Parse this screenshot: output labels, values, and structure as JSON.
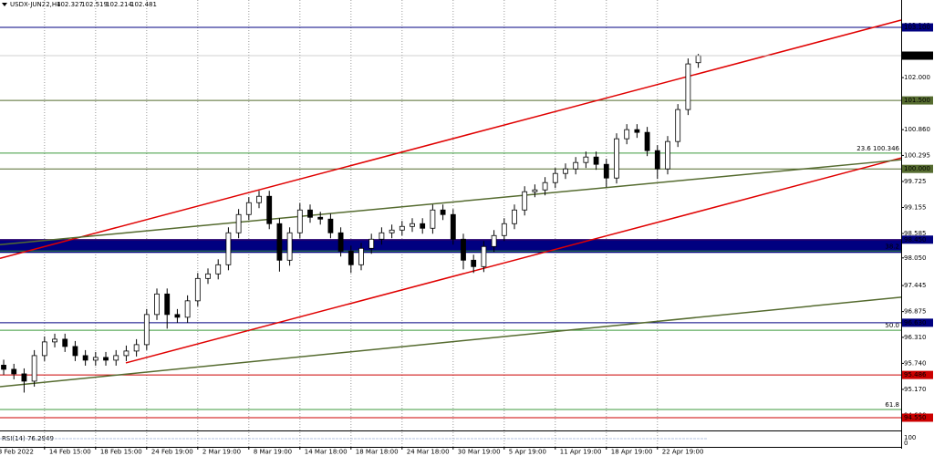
{
  "chart_data": {
    "type": "candlestick",
    "title": "USDX-JUN22,H4",
    "xlim": [
      -0.36,
      87.86
    ],
    "ylim": [
      94.27,
      103.7
    ],
    "xticks": [
      {
        "value": -1,
        "label": "3 Feb 2022"
      },
      {
        "value": 4,
        "label": "14 Feb 15:00"
      },
      {
        "value": 9,
        "label": "18 Feb 15:00"
      },
      {
        "value": 14,
        "label": "24 Feb 19:00"
      },
      {
        "value": 19,
        "label": "2 Mar 19:00"
      },
      {
        "value": 24,
        "label": "8 Mar 19:00"
      },
      {
        "value": 29,
        "label": "14 Mar 18:00"
      },
      {
        "value": 34,
        "label": "18 Mar 18:00"
      },
      {
        "value": 39,
        "label": "24 Mar 18:00"
      },
      {
        "value": 44,
        "label": "30 Mar 19:00"
      },
      {
        "value": 49,
        "label": "5 Apr 19:00"
      },
      {
        "value": 54,
        "label": "11 Apr 19:00"
      },
      {
        "value": 59,
        "label": "18 Apr 19:00"
      },
      {
        "value": 64,
        "label": "22 Apr 19:00"
      }
    ],
    "yticks": [
      {
        "value": 103.14,
        "label": "103.140"
      },
      {
        "value": 102,
        "label": "102.000"
      },
      {
        "value": 100.86,
        "label": "100.860"
      },
      100.295,
      99.725,
      99.155,
      98.585,
      {
        "value": 98.05,
        "label": "98.050"
      },
      97.445,
      96.875,
      {
        "value": 96.31,
        "label": "96.310"
      },
      {
        "value": 95.74,
        "label": "95.740"
      },
      {
        "value": 95.17,
        "label": "95.170"
      },
      {
        "value": 94.6,
        "label": "94.600"
      }
    ],
    "grid": true,
    "open": [
      95.7,
      95.61,
      95.51,
      95.35,
      95.91,
      96.21,
      96.27,
      96.11,
      95.91,
      95.81,
      95.87,
      95.81,
      95.91,
      96.01,
      96.15,
      96.81,
      97.26,
      96.81,
      96.75,
      97.11,
      97.6,
      97.7,
      97.9,
      98.6,
      99.0,
      99.26,
      99.4,
      98.8,
      98.0,
      98.6,
      99.1,
      98.94,
      98.9,
      98.6,
      98.2,
      97.9,
      98.26,
      98.46,
      98.6,
      98.66,
      98.74,
      98.8,
      98.7,
      99.1,
      99.0,
      98.46,
      98.0,
      97.86,
      98.3,
      98.54,
      98.8,
      99.1,
      99.5,
      99.54,
      99.7,
      99.9,
      100.0,
      100.14,
      100.26,
      100.1,
      99.8,
      100.66,
      100.86,
      100.8,
      100.4,
      100.0,
      100.6,
      101.3,
      102.327
    ],
    "high": [
      95.82,
      95.73,
      95.63,
      96.03,
      96.33,
      96.39,
      96.39,
      96.23,
      96.03,
      95.99,
      95.99,
      96.03,
      96.13,
      96.27,
      96.93,
      97.38,
      97.38,
      96.93,
      97.23,
      97.72,
      97.82,
      98.02,
      98.72,
      99.12,
      99.38,
      99.52,
      99.52,
      98.92,
      98.72,
      99.25,
      99.22,
      99.06,
      99.02,
      98.72,
      98.32,
      98.38,
      98.58,
      98.72,
      98.78,
      98.86,
      98.92,
      98.92,
      99.22,
      99.22,
      99.12,
      98.58,
      98.12,
      98.42,
      98.66,
      98.92,
      99.22,
      99.62,
      99.66,
      99.82,
      100.02,
      100.12,
      100.26,
      100.38,
      100.38,
      100.22,
      100.78,
      100.98,
      100.98,
      100.92,
      100.52,
      100.72,
      101.42,
      102.42,
      102.519
    ],
    "low": [
      95.49,
      95.39,
      95.1,
      95.23,
      95.79,
      96.09,
      95.99,
      95.79,
      95.69,
      95.69,
      95.69,
      95.69,
      95.79,
      95.89,
      96.03,
      96.69,
      96.5,
      96.63,
      96.63,
      96.99,
      97.48,
      97.58,
      97.78,
      98.48,
      98.88,
      99.14,
      98.68,
      97.75,
      97.88,
      98.48,
      98.82,
      98.78,
      98.48,
      98.08,
      97.72,
      97.78,
      98.14,
      98.34,
      98.48,
      98.54,
      98.62,
      98.58,
      98.58,
      98.88,
      98.34,
      97.8,
      97.72,
      97.74,
      98.18,
      98.42,
      98.68,
      98.98,
      99.38,
      99.42,
      99.58,
      99.78,
      99.88,
      100.02,
      99.98,
      99.6,
      99.68,
      100.54,
      100.68,
      100.28,
      99.78,
      99.88,
      100.48,
      101.18,
      102.214
    ],
    "close": [
      95.61,
      95.51,
      95.35,
      95.91,
      96.21,
      96.27,
      96.11,
      95.91,
      95.81,
      95.87,
      95.81,
      95.91,
      96.01,
      96.15,
      96.81,
      97.26,
      96.81,
      96.75,
      97.11,
      97.6,
      97.7,
      97.9,
      98.6,
      99.0,
      99.26,
      99.4,
      98.8,
      98.0,
      98.6,
      99.1,
      98.94,
      98.9,
      98.6,
      98.2,
      97.9,
      98.26,
      98.46,
      98.6,
      98.66,
      98.74,
      98.8,
      98.7,
      99.1,
      99.0,
      98.46,
      98.0,
      97.86,
      98.3,
      98.54,
      98.8,
      99.1,
      99.5,
      99.54,
      99.7,
      99.9,
      100.0,
      100.14,
      100.26,
      100.1,
      99.8,
      100.66,
      100.86,
      100.8,
      100.4,
      100.0,
      100.6,
      101.3,
      102.3,
      102.481
    ],
    "levels": [
      {
        "value": 103.1,
        "label": "103.100",
        "color": "#000080"
      },
      {
        "value": 101.5,
        "label": "101.500",
        "color": "#556b2f"
      },
      {
        "value": 100,
        "label": "100.000",
        "color": "#556b2f"
      },
      {
        "value": 98.45,
        "label": "98.450",
        "color": "#000080"
      },
      {
        "value": 96.63,
        "label": "96.630",
        "color": "#000080"
      },
      {
        "value": 95.486,
        "label": "95.486",
        "color": "#cc0000"
      },
      {
        "value": 94.55,
        "label": "94.550",
        "color": "#cc0000"
      }
    ],
    "zones": [
      {
        "top": 98.45,
        "bottom": 98.16,
        "color": "#000080",
        "edge": "#ff0000"
      }
    ],
    "fibo": [
      {
        "value": 100.346,
        "label": "23.6 100.346"
      },
      {
        "value": 98.2,
        "label": "38.2"
      },
      {
        "value": 96.465,
        "label": "50.0"
      },
      {
        "value": 94.73,
        "label": "61.8"
      }
    ],
    "fibo_color": "#3c9a3c",
    "trendlines": [
      {
        "color": "#e00000",
        "points": [
          [
            -0.36,
            98.04
          ],
          [
            87.86,
            103.26
          ]
        ]
      },
      {
        "color": "#e00000",
        "points": [
          [
            11.96,
            95.75
          ],
          [
            87.86,
            100.24
          ]
        ]
      },
      {
        "color": "#556b2f",
        "points": [
          [
            -0.36,
            98.34
          ],
          [
            87.86,
            100.2
          ]
        ]
      },
      {
        "color": "#556b2f",
        "points": [
          [
            -0.36,
            95.23
          ],
          [
            87.86,
            97.19
          ]
        ]
      }
    ],
    "rsi": {
      "label": "RSI(14) 76.2949",
      "ticks": [
        100,
        0
      ]
    }
  }
}
